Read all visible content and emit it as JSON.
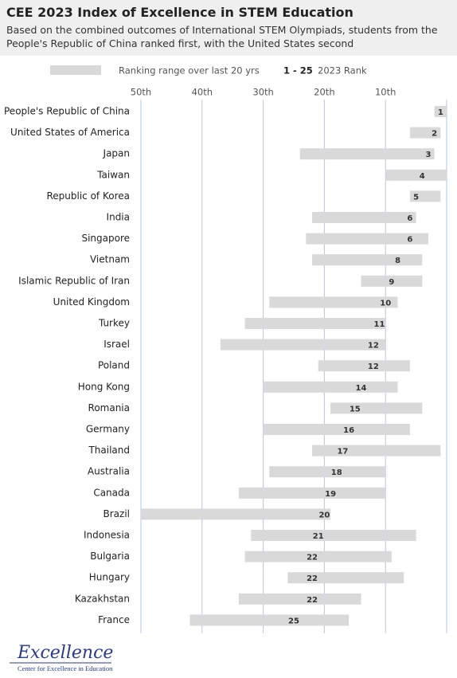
{
  "chart_data": {
    "type": "range-bar",
    "title": "CEE 2023 Index of Excellence in STEM Education",
    "subtitle": "Based on the combined outcomes of International STEM Olympiads, students from the People's Republic of China ranked first, with the United States second",
    "categories": [
      "People's Republic of China",
      "United States of America",
      "Japan",
      "Taiwan",
      "Republic of Korea",
      "India",
      "Singapore",
      "Vietnam",
      "Islamic Republic of Iran",
      "United Kingdom",
      "Turkey",
      "Israel",
      "Poland",
      "Hong Kong",
      "Romania",
      "Germany",
      "Thailand",
      "Australia",
      "Canada",
      "Brazil",
      "Indonesia",
      "Bulgaria",
      "Hungary",
      "Kazakhstan",
      "France"
    ],
    "series": [
      {
        "name": "Ranking range over last 20 yrs",
        "color": "#d9d9d9",
        "ranges": [
          [
            0,
            2
          ],
          [
            1,
            6
          ],
          [
            2,
            24
          ],
          [
            0,
            10
          ],
          [
            1,
            6
          ],
          [
            5,
            22
          ],
          [
            3,
            23
          ],
          [
            4,
            22
          ],
          [
            4,
            14
          ],
          [
            8,
            29
          ],
          [
            10,
            33
          ],
          [
            10,
            37
          ],
          [
            6,
            21
          ],
          [
            8,
            30
          ],
          [
            4,
            19
          ],
          [
            6,
            30
          ],
          [
            1,
            22
          ],
          [
            10,
            29
          ],
          [
            10,
            34
          ],
          [
            19,
            50
          ],
          [
            5,
            32
          ],
          [
            9,
            33
          ],
          [
            7,
            26
          ],
          [
            14,
            34
          ],
          [
            16,
            42
          ]
        ]
      },
      {
        "name": "2023 Rank",
        "values": [
          1,
          2,
          3,
          4,
          5,
          6,
          6,
          8,
          9,
          10,
          11,
          12,
          12,
          14,
          15,
          16,
          17,
          18,
          19,
          20,
          21,
          22,
          22,
          22,
          25
        ]
      }
    ],
    "legend_range_label": "1 - 25",
    "xlim": [
      50,
      0
    ],
    "xticks": [
      {
        "value": 50,
        "label": "50th"
      },
      {
        "value": 40,
        "label": "40th"
      },
      {
        "value": 30,
        "label": "30th"
      },
      {
        "value": 20,
        "label": "20th"
      },
      {
        "value": 10,
        "label": "10th"
      }
    ],
    "grid": true,
    "grid_color": "#b8c4e6",
    "logo": {
      "name": "Excellence",
      "tagline": "Center for Excellence in Education"
    }
  }
}
